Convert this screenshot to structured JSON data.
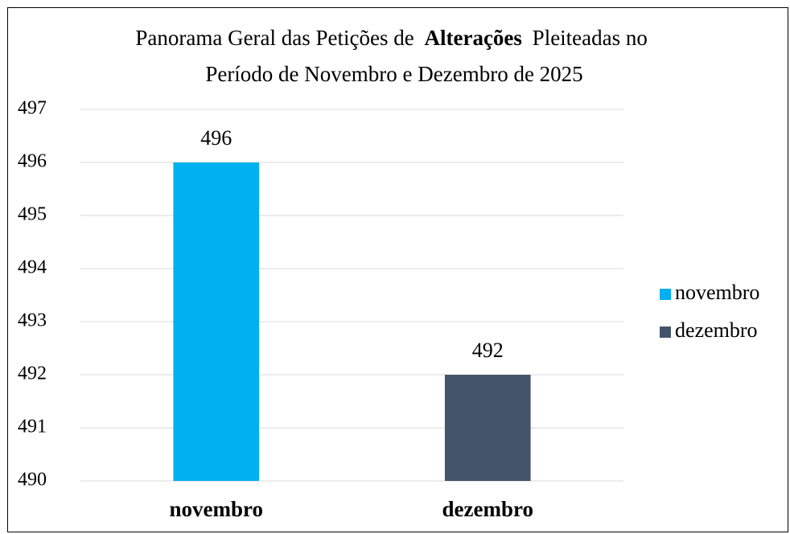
{
  "chart_data": {
    "type": "bar",
    "title": [
      "Panorama Geral das Petições de",
      "Alterações",
      "Pleiteadas no",
      "Período de Novembro e Dezembro de 2025"
    ],
    "title_bold": [
      1
    ],
    "categories": [
      "novembro",
      "dezembro"
    ],
    "values": [
      496,
      492
    ],
    "colors": [
      "#00b0f0",
      "#44546a"
    ],
    "ylim": [
      490,
      497
    ],
    "yticks": [
      490,
      491,
      492,
      493,
      494,
      495,
      496,
      497
    ],
    "grid": true,
    "legend": "right"
  }
}
